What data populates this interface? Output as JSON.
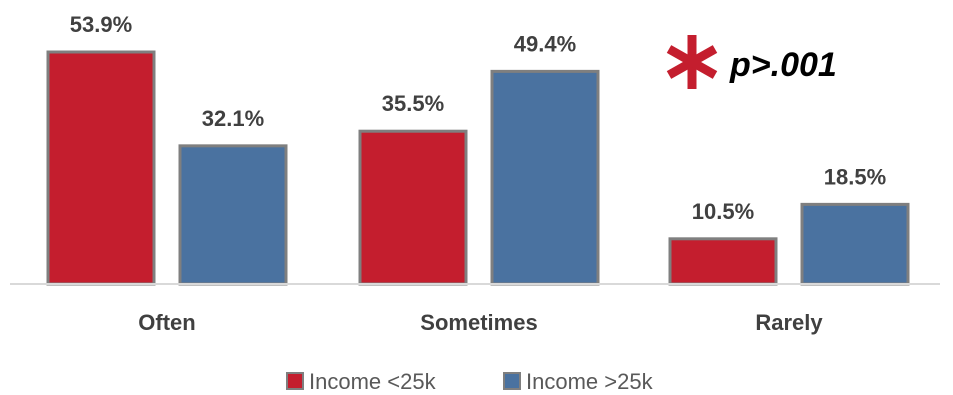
{
  "chart_data": {
    "type": "bar",
    "categories": [
      "Often",
      "Sometimes",
      "Rarely"
    ],
    "series": [
      {
        "name": "Income <25k",
        "values": [
          53.9,
          35.5,
          10.5
        ],
        "labels": [
          "53.9%",
          "35.5%",
          "10.5%"
        ],
        "color": "#C41E2E"
      },
      {
        "name": "Income >25k",
        "values": [
          32.1,
          49.4,
          18.5
        ],
        "labels": [
          "32.1%",
          "49.4%",
          "18.5%"
        ],
        "color": "#4A72A0"
      }
    ],
    "ylim": [
      0,
      60
    ],
    "grid": false,
    "legend_position": "bottom",
    "annotation": {
      "text": "p>.001",
      "symbol": "asterisk",
      "symbol_color": "#C41E2E"
    }
  }
}
